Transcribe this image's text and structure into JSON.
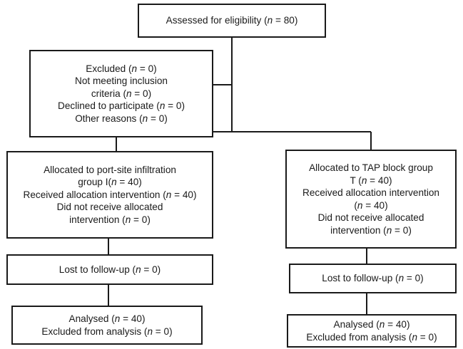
{
  "boxes": {
    "assessed": {
      "lines": [
        {
          "pre": "Assessed for eligibility (",
          "post": " = 80)"
        }
      ]
    },
    "excluded": {
      "lines": [
        {
          "pre": "Excluded (",
          "post": " = 0)"
        },
        {
          "pre": "Not meeting inclusion",
          "post": "",
          "no_n": true
        },
        {
          "pre": "criteria (",
          "post": " = 0)"
        },
        {
          "pre": "Declined to participate (",
          "post": " = 0)"
        },
        {
          "pre": "Other reasons (",
          "post": " = 0)"
        }
      ]
    },
    "alloc_left": {
      "lines": [
        {
          "pre": "Allocated to port-site infiltration",
          "post": "",
          "no_n": true
        },
        {
          "pre": "group I(",
          "post": " = 40)"
        },
        {
          "pre": "Received allocation intervention (",
          "post": " = 40)"
        },
        {
          "pre": "Did not receive allocated",
          "post": "",
          "no_n": true
        },
        {
          "pre": "intervention (",
          "post": " = 0)"
        }
      ]
    },
    "alloc_right": {
      "lines": [
        {
          "pre": "Allocated to TAP block group",
          "post": "",
          "no_n": true
        },
        {
          "pre": "T (",
          "post": " = 40)"
        },
        {
          "pre": "Received allocation intervention",
          "post": "",
          "no_n": true
        },
        {
          "pre": "(",
          "post": " = 40)"
        },
        {
          "pre": "Did not receive allocated",
          "post": "",
          "no_n": true
        },
        {
          "pre": "intervention (",
          "post": " = 0)"
        }
      ]
    },
    "lost_left": {
      "lines": [
        {
          "pre": "Lost to follow-up (",
          "post": " = 0)"
        }
      ]
    },
    "lost_right": {
      "lines": [
        {
          "pre": "Lost to follow-up (",
          "post": " = 0)"
        }
      ]
    },
    "analysed_left": {
      "lines": [
        {
          "pre": "Analysed (",
          "post": " = 40)"
        },
        {
          "pre": "Excluded from analysis (",
          "post": " = 0)"
        }
      ]
    },
    "analysed_right": {
      "lines": [
        {
          "pre": "Analysed (",
          "post": " = 40)"
        },
        {
          "pre": "Excluded from analysis (",
          "post": " = 0)"
        }
      ]
    }
  },
  "n_symbol": "n"
}
